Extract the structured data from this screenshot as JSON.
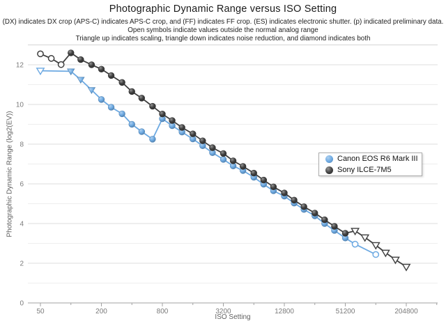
{
  "header": {
    "title": "Photographic Dynamic Range versus ISO Setting",
    "subtitle1": "(DX) indicates DX crop (APS-C) indicates APS-C crop, and (FF) indicates FF crop. (ES) indicates electronic shutter. (p) indicated preliminary data.",
    "subtitle2": "Open symbols indicate values outside the normal analog range",
    "subtitle3": "Triangle up indicates scaling, triangle down indicates noise reduction, and diamond indicates both"
  },
  "legend": {
    "items": [
      {
        "label": "Canon EOS R6 Mark III",
        "color": "#6ca9e2"
      },
      {
        "label": "Sony ILCE-7M5",
        "color": "#3f3f3f"
      }
    ]
  },
  "chart_data": {
    "type": "line",
    "title": "Photographic Dynamic Range versus ISO Setting",
    "xlabel": "ISO Setting",
    "ylabel": "Photographic Dynamic Range (log2(EV))",
    "x_scale": "log2",
    "x_base_iso": 50,
    "x_ticks_labeled": [
      50,
      200,
      800,
      3200,
      12800,
      51200,
      204800
    ],
    "x_ticks_minor": [
      100,
      400,
      1600,
      6400,
      25600,
      102400,
      409600
    ],
    "y_ticks_labeled": [
      0,
      2,
      4,
      6,
      8,
      10,
      12
    ],
    "ylim": [
      0,
      13
    ],
    "grid": "horizontal-every-1EV",
    "legend_position": "right-middle",
    "colors": {
      "canon": "#6ca9e2",
      "sony": "#3f3f3f",
      "grid_major": "#dddddd",
      "grid_minor": "#eeeeee",
      "axis": "#a0a0a0",
      "tick_text": "#7a7a7a"
    },
    "series": [
      {
        "name": "Canon EOS R6 Mark III",
        "color": "#6ca9e2",
        "points": [
          {
            "iso": 50,
            "pdr": 11.7,
            "sym": "tri-down-open"
          },
          {
            "iso": 100,
            "pdr": 11.67,
            "sym": "tri-down"
          },
          {
            "iso": 125,
            "pdr": 11.25,
            "sym": "tri-down"
          },
          {
            "iso": 160,
            "pdr": 10.73,
            "sym": "tri-down"
          },
          {
            "iso": 200,
            "pdr": 10.25,
            "sym": "circle"
          },
          {
            "iso": 250,
            "pdr": 9.86,
            "sym": "circle"
          },
          {
            "iso": 320,
            "pdr": 9.53,
            "sym": "circle"
          },
          {
            "iso": 400,
            "pdr": 9.0,
            "sym": "circle"
          },
          {
            "iso": 500,
            "pdr": 8.63,
            "sym": "circle"
          },
          {
            "iso": 640,
            "pdr": 8.25,
            "sym": "circle"
          },
          {
            "iso": 800,
            "pdr": 9.28,
            "sym": "circle"
          },
          {
            "iso": 1000,
            "pdr": 8.93,
            "sym": "circle"
          },
          {
            "iso": 1250,
            "pdr": 8.61,
            "sym": "circle"
          },
          {
            "iso": 1600,
            "pdr": 8.26,
            "sym": "circle"
          },
          {
            "iso": 2000,
            "pdr": 7.92,
            "sym": "circle"
          },
          {
            "iso": 2500,
            "pdr": 7.57,
            "sym": "circle"
          },
          {
            "iso": 3200,
            "pdr": 7.23,
            "sym": "circle"
          },
          {
            "iso": 4000,
            "pdr": 6.9,
            "sym": "circle"
          },
          {
            "iso": 5000,
            "pdr": 6.67,
            "sym": "circle"
          },
          {
            "iso": 6400,
            "pdr": 6.33,
            "sym": "circle"
          },
          {
            "iso": 8000,
            "pdr": 5.98,
            "sym": "circle"
          },
          {
            "iso": 10000,
            "pdr": 5.65,
            "sym": "circle"
          },
          {
            "iso": 12800,
            "pdr": 5.38,
            "sym": "circle"
          },
          {
            "iso": 16000,
            "pdr": 5.03,
            "sym": "circle"
          },
          {
            "iso": 20000,
            "pdr": 4.71,
            "sym": "circle"
          },
          {
            "iso": 25600,
            "pdr": 4.39,
            "sym": "circle"
          },
          {
            "iso": 32000,
            "pdr": 4.0,
            "sym": "circle"
          },
          {
            "iso": 40000,
            "pdr": 3.65,
            "sym": "circle"
          },
          {
            "iso": 51200,
            "pdr": 3.27,
            "sym": "circle"
          },
          {
            "iso": 64000,
            "pdr": 2.96,
            "sym": "circle-open"
          },
          {
            "iso": 102400,
            "pdr": 2.44,
            "sym": "circle-open"
          }
        ]
      },
      {
        "name": "Sony ILCE-7M5",
        "color": "#3f3f3f",
        "points": [
          {
            "iso": 50,
            "pdr": 12.55,
            "sym": "circle-open"
          },
          {
            "iso": 64,
            "pdr": 12.32,
            "sym": "circle-open"
          },
          {
            "iso": 80,
            "pdr": 12.01,
            "sym": "circle-open"
          },
          {
            "iso": 100,
            "pdr": 12.6,
            "sym": "circle"
          },
          {
            "iso": 125,
            "pdr": 12.26,
            "sym": "circle"
          },
          {
            "iso": 160,
            "pdr": 12.0,
            "sym": "circle"
          },
          {
            "iso": 200,
            "pdr": 11.78,
            "sym": "circle"
          },
          {
            "iso": 250,
            "pdr": 11.46,
            "sym": "circle"
          },
          {
            "iso": 320,
            "pdr": 11.11,
            "sym": "circle"
          },
          {
            "iso": 400,
            "pdr": 10.65,
            "sym": "circle"
          },
          {
            "iso": 500,
            "pdr": 10.32,
            "sym": "circle"
          },
          {
            "iso": 640,
            "pdr": 9.91,
            "sym": "circle"
          },
          {
            "iso": 800,
            "pdr": 9.52,
            "sym": "circle"
          },
          {
            "iso": 1000,
            "pdr": 9.19,
            "sym": "circle"
          },
          {
            "iso": 1250,
            "pdr": 8.84,
            "sym": "circle"
          },
          {
            "iso": 1600,
            "pdr": 8.52,
            "sym": "circle"
          },
          {
            "iso": 2000,
            "pdr": 8.17,
            "sym": "circle"
          },
          {
            "iso": 2500,
            "pdr": 7.82,
            "sym": "circle"
          },
          {
            "iso": 3200,
            "pdr": 7.53,
            "sym": "circle"
          },
          {
            "iso": 4000,
            "pdr": 7.16,
            "sym": "circle"
          },
          {
            "iso": 5000,
            "pdr": 6.88,
            "sym": "circle"
          },
          {
            "iso": 6400,
            "pdr": 6.54,
            "sym": "circle"
          },
          {
            "iso": 8000,
            "pdr": 6.19,
            "sym": "circle"
          },
          {
            "iso": 10000,
            "pdr": 5.85,
            "sym": "circle"
          },
          {
            "iso": 12800,
            "pdr": 5.54,
            "sym": "circle"
          },
          {
            "iso": 16000,
            "pdr": 5.18,
            "sym": "circle"
          },
          {
            "iso": 20000,
            "pdr": 4.85,
            "sym": "circle"
          },
          {
            "iso": 25600,
            "pdr": 4.53,
            "sym": "circle"
          },
          {
            "iso": 32000,
            "pdr": 4.19,
            "sym": "circle"
          },
          {
            "iso": 40000,
            "pdr": 3.86,
            "sym": "circle"
          },
          {
            "iso": 51200,
            "pdr": 3.51,
            "sym": "circle"
          },
          {
            "iso": 64000,
            "pdr": 3.63,
            "sym": "tri-down-open"
          },
          {
            "iso": 80000,
            "pdr": 3.3,
            "sym": "tri-down-open"
          },
          {
            "iso": 102400,
            "pdr": 2.91,
            "sym": "tri-down-open"
          },
          {
            "iso": 128000,
            "pdr": 2.53,
            "sym": "tri-down-open"
          },
          {
            "iso": 160000,
            "pdr": 2.18,
            "sym": "tri-down-open"
          },
          {
            "iso": 204800,
            "pdr": 1.82,
            "sym": "tri-down-open"
          }
        ]
      }
    ]
  }
}
